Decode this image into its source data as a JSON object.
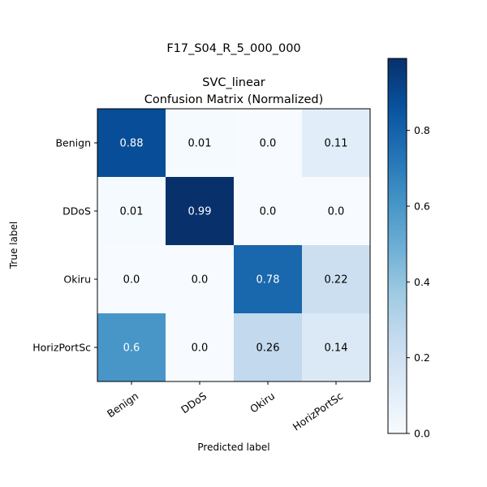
{
  "chart_data": {
    "type": "heatmap",
    "suptitle": "F17_S04_R_5_000_000",
    "title_line1": "SVC_linear",
    "title_line2": "Confusion Matrix (Normalized)",
    "xlabel": "Predicted label",
    "ylabel": "True label",
    "x_categories": [
      "Benign",
      "DDoS",
      "Okiru",
      "HorizPortSc"
    ],
    "y_categories": [
      "Benign",
      "DDoS",
      "Okiru",
      "HorizPortSc"
    ],
    "values": [
      [
        0.88,
        0.01,
        0.0,
        0.11
      ],
      [
        0.01,
        0.99,
        0.0,
        0.0
      ],
      [
        0.0,
        0.0,
        0.78,
        0.22
      ],
      [
        0.6,
        0.0,
        0.26,
        0.14
      ]
    ],
    "cell_labels": [
      [
        "0.88",
        "0.01",
        "0.0",
        "0.11"
      ],
      [
        "0.01",
        "0.99",
        "0.0",
        "0.0"
      ],
      [
        "0.0",
        "0.0",
        "0.78",
        "0.22"
      ],
      [
        "0.6",
        "0.0",
        "0.26",
        "0.14"
      ]
    ],
    "colormap": "Blues",
    "color_range": [
      0,
      0.99
    ],
    "colorbar_ticks": [
      0.0,
      0.2,
      0.4,
      0.6,
      0.8
    ],
    "colorbar_tick_labels": [
      "0.0",
      "0.2",
      "0.4",
      "0.6",
      "0.8"
    ],
    "text_color_light": "#ffffff",
    "text_color_dark": "#000000"
  }
}
